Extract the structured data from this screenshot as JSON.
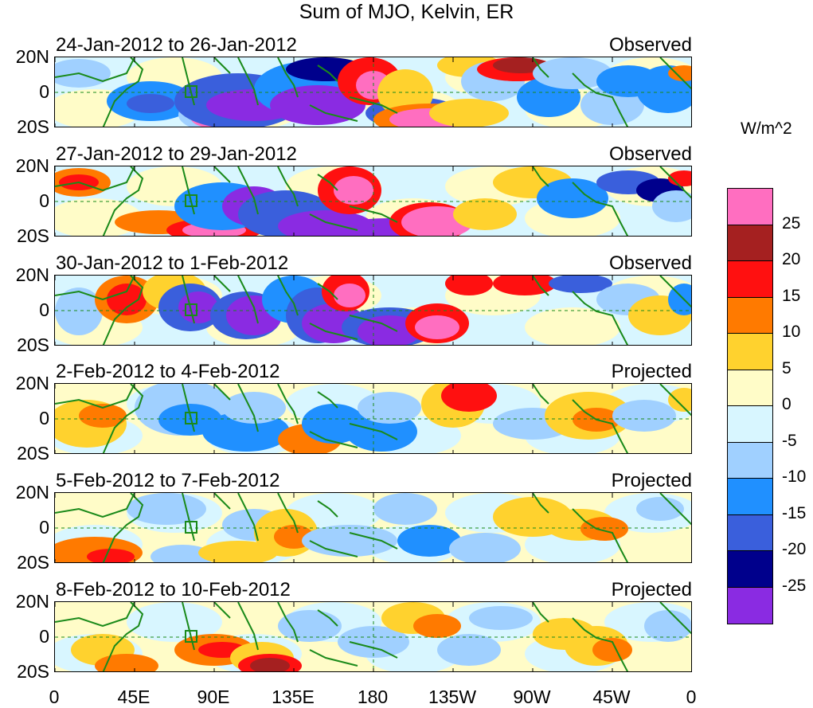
{
  "title": "Sum of MJO, Kelvin, ER",
  "panels": [
    {
      "date_range": "24-Jan-2012 to 26-Jan-2012",
      "type": "Observed"
    },
    {
      "date_range": "27-Jan-2012 to 29-Jan-2012",
      "type": "Observed"
    },
    {
      "date_range": "30-Jan-2012 to 1-Feb-2012",
      "type": "Observed"
    },
    {
      "date_range": "2-Feb-2012 to 4-Feb-2012",
      "type": "Projected"
    },
    {
      "date_range": "5-Feb-2012 to 7-Feb-2012",
      "type": "Projected"
    },
    {
      "date_range": "8-Feb-2012 to 10-Feb-2012",
      "type": "Projected"
    }
  ],
  "y_ticks": [
    "20N",
    "0",
    "20S"
  ],
  "x_ticks": [
    "0",
    "45E",
    "90E",
    "135E",
    "180",
    "135W",
    "90W",
    "45W",
    "0"
  ],
  "colorbar": {
    "unit": "W/m^2",
    "labels": [
      "25",
      "20",
      "15",
      "10",
      "5",
      "0",
      "-5",
      "-10",
      "-15",
      "-20",
      "-25"
    ],
    "colors": [
      "#ff6ec0",
      "#a52020",
      "#ff1010",
      "#ff7a00",
      "#ffd22e",
      "#fffcc8",
      "#d8f6ff",
      "#a0d0ff",
      "#2090ff",
      "#3a5fdc",
      "#00008c",
      "#8a2be2"
    ]
  },
  "anomaly_colors": {
    "strong_pos": "#ff6ec0",
    "pos20": "#a52020",
    "pos15": "#ff1010",
    "pos10": "#ff7a00",
    "pos5": "#ffd22e",
    "weak_pos": "#fffcc8",
    "weak_neg": "#d8f6ff",
    "neg5": "#a0d0ff",
    "neg10": "#2090ff",
    "neg15": "#3a5fdc",
    "neg20": "#00008c",
    "strong_neg": "#8a2be2",
    "coast": "#1a8a1a"
  }
}
